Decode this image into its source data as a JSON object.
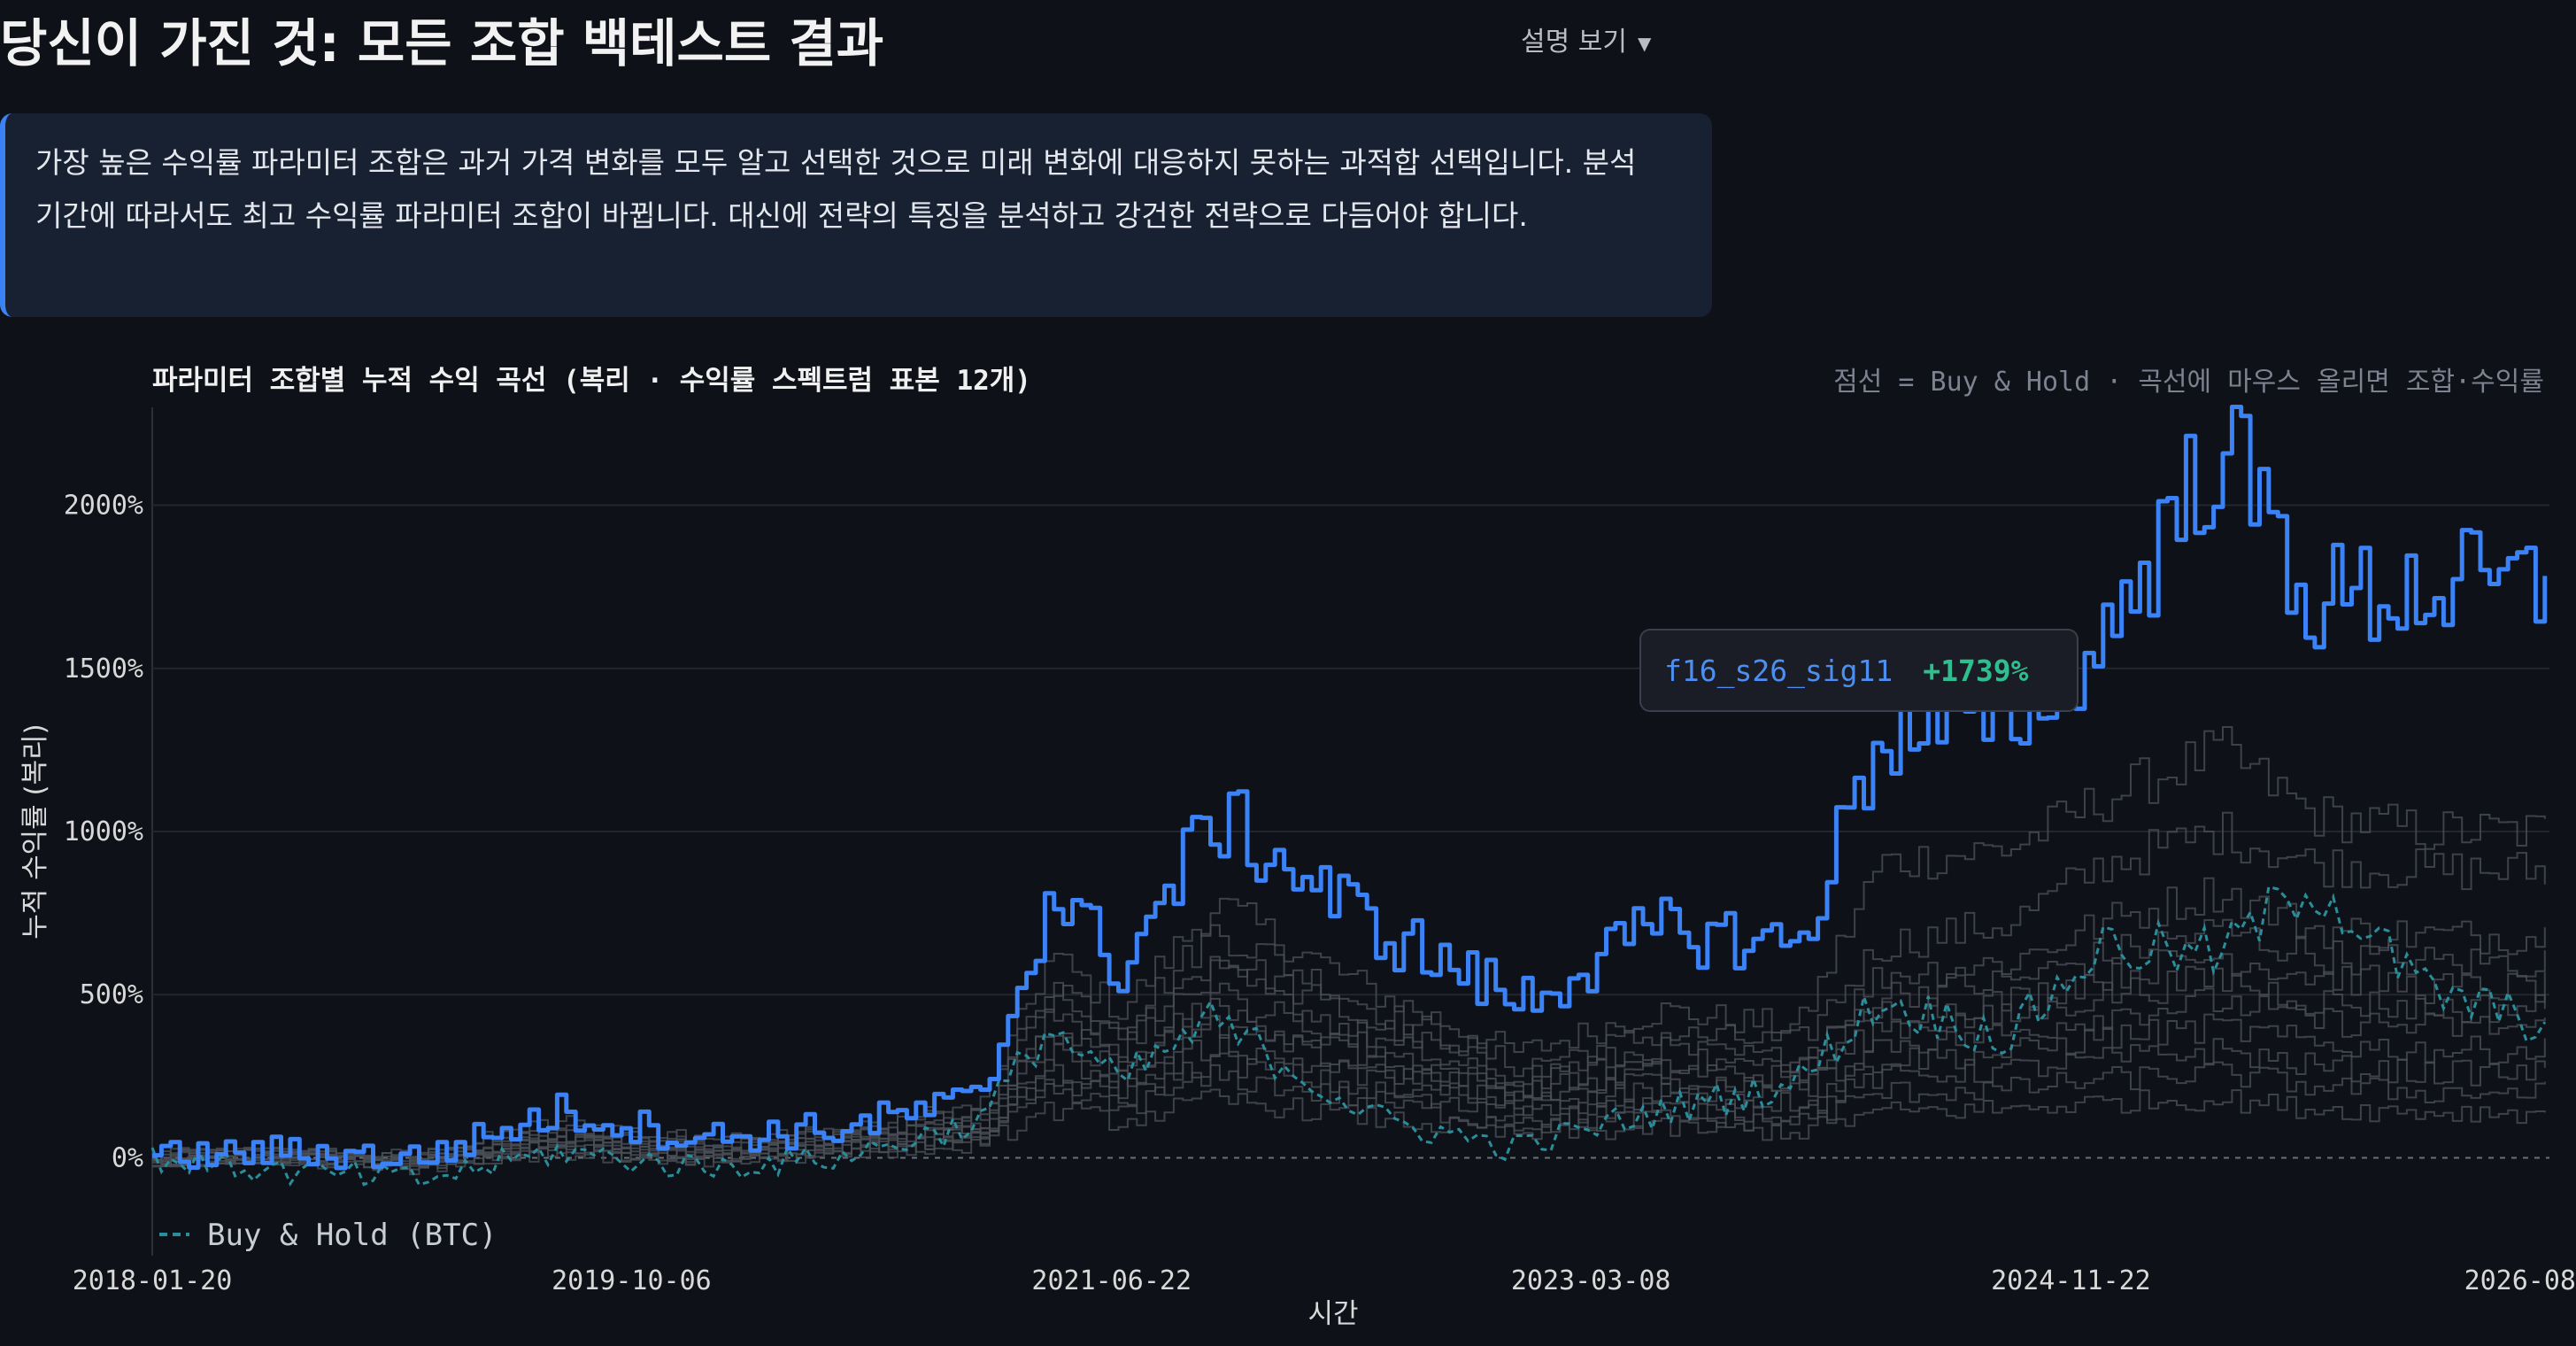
{
  "page": {
    "title": "당신이 가진 것: 모든 조합 백테스트 결과",
    "explain_toggle": "설명 보기",
    "explain_toggle_caret_icon": "caret-down-icon"
  },
  "info_box": {
    "text": "가장 높은 수익률 파라미터 조합은 과거 가격 변화를 모두 알고 선택한 것으로 미래 변화에 대응하지 못하는 과적합 선택입니다. 분석 기간에 따라서도 최고 수익률 파라미터 조합이 바뀝니다. 대신에 전략의 특징을 분석하고 강건한 전략으로 다듬어야 합니다.",
    "accent": "#3b82f6"
  },
  "chart_data": {
    "type": "line",
    "title": "파라미터 조합별 누적 수익 곡선 (복리 · 수익률 스펙트럼 표본 12개)",
    "hint": "점선 = Buy & Hold · 곡선에 마우스 올리면 조합·수익률",
    "xlabel": "시간",
    "ylabel": "누적 수익률 (복리)",
    "x_ticks": [
      "2018-01-20",
      "2019-10-06",
      "2021-06-22",
      "2023-03-08",
      "2024-11-22",
      "2026-08"
    ],
    "y_ticks": [
      "0%",
      "500%",
      "1000%",
      "1500%",
      "2000%"
    ],
    "ylim": [
      -300,
      2300
    ],
    "xlim": [
      "2018-01-20",
      "2026-08-07"
    ],
    "grid": true,
    "legend": {
      "position": "bottom-left",
      "entries": [
        "Buy & Hold (BTC)"
      ]
    },
    "x": [
      "2018-01-20",
      "2018-07-01",
      "2019-01-01",
      "2019-07-01",
      "2020-01-01",
      "2020-07-01",
      "2021-01-01",
      "2021-04-01",
      "2021-07-01",
      "2021-11-01",
      "2022-06-01",
      "2022-12-01",
      "2023-06-01",
      "2023-12-01",
      "2024-03-15",
      "2024-09-01",
      "2025-01-01",
      "2025-06-01",
      "2025-10-01",
      "2026-03-01",
      "2026-08-01"
    ],
    "series": [
      {
        "name": "f16_s26_sig11",
        "highlight": true,
        "color": "#3b82f6",
        "values": [
          0,
          20,
          0,
          140,
          60,
          90,
          180,
          820,
          580,
          1050,
          700,
          480,
          700,
          650,
          1300,
          1350,
          1600,
          2200,
          1700,
          1750,
          1739
        ]
      },
      {
        "color": "#4a4d55",
        "values": [
          0,
          15,
          0,
          110,
          50,
          80,
          160,
          620,
          450,
          780,
          500,
          320,
          450,
          400,
          900,
          950,
          1100,
          1250,
          1050,
          1000,
          1000
        ]
      },
      {
        "color": "#4a4d55",
        "values": [
          0,
          12,
          -5,
          90,
          40,
          70,
          140,
          550,
          400,
          700,
          450,
          280,
          380,
          350,
          650,
          720,
          900,
          1000,
          900,
          880,
          880
        ]
      },
      {
        "color": "#4a4d55",
        "values": [
          0,
          10,
          -10,
          80,
          30,
          60,
          120,
          500,
          360,
          620,
          400,
          250,
          330,
          300,
          560,
          600,
          720,
          820,
          700,
          680,
          680
        ]
      },
      {
        "color": "#4a4d55",
        "values": [
          0,
          8,
          -10,
          70,
          25,
          55,
          110,
          450,
          330,
          560,
          360,
          220,
          300,
          280,
          500,
          540,
          620,
          700,
          620,
          600,
          600
        ]
      },
      {
        "color": "#4a4d55",
        "values": [
          0,
          6,
          -12,
          60,
          20,
          50,
          100,
          400,
          300,
          500,
          330,
          200,
          270,
          250,
          450,
          480,
          560,
          620,
          560,
          520,
          520
        ]
      },
      {
        "color": "#4a4d55",
        "values": [
          0,
          5,
          -15,
          55,
          15,
          45,
          90,
          360,
          270,
          450,
          300,
          180,
          240,
          220,
          400,
          430,
          500,
          550,
          480,
          460,
          460
        ]
      },
      {
        "color": "#4a4d55",
        "values": [
          0,
          4,
          -15,
          50,
          10,
          40,
          80,
          320,
          240,
          400,
          270,
          160,
          210,
          200,
          350,
          380,
          440,
          480,
          420,
          400,
          400
        ]
      },
      {
        "color": "#4a4d55",
        "values": [
          0,
          3,
          -18,
          45,
          5,
          35,
          70,
          280,
          210,
          350,
          240,
          140,
          180,
          170,
          300,
          320,
          370,
          400,
          350,
          330,
          330
        ]
      },
      {
        "color": "#4a4d55",
        "values": [
          0,
          2,
          -20,
          35,
          0,
          30,
          60,
          240,
          180,
          300,
          200,
          120,
          150,
          140,
          250,
          270,
          300,
          330,
          280,
          260,
          260
        ]
      },
      {
        "color": "#4a4d55",
        "values": [
          0,
          1,
          -22,
          30,
          -5,
          25,
          50,
          200,
          150,
          250,
          170,
          100,
          120,
          110,
          200,
          210,
          240,
          260,
          220,
          200,
          200
        ]
      },
      {
        "color": "#4a4d55",
        "values": [
          0,
          0,
          -25,
          20,
          -10,
          20,
          40,
          150,
          110,
          180,
          120,
          70,
          90,
          80,
          140,
          150,
          170,
          180,
          150,
          140,
          140
        ]
      },
      {
        "name": "Buy & Hold (BTC)",
        "dashed": true,
        "color": "#2a8d9a",
        "values": [
          0,
          -40,
          -70,
          20,
          -30,
          0,
          110,
          400,
          230,
          420,
          120,
          30,
          140,
          230,
          480,
          370,
          650,
          620,
          850,
          510,
          410
        ]
      }
    ]
  },
  "tooltip": {
    "name": "f16_s26_sig11",
    "value": "+1739%"
  }
}
